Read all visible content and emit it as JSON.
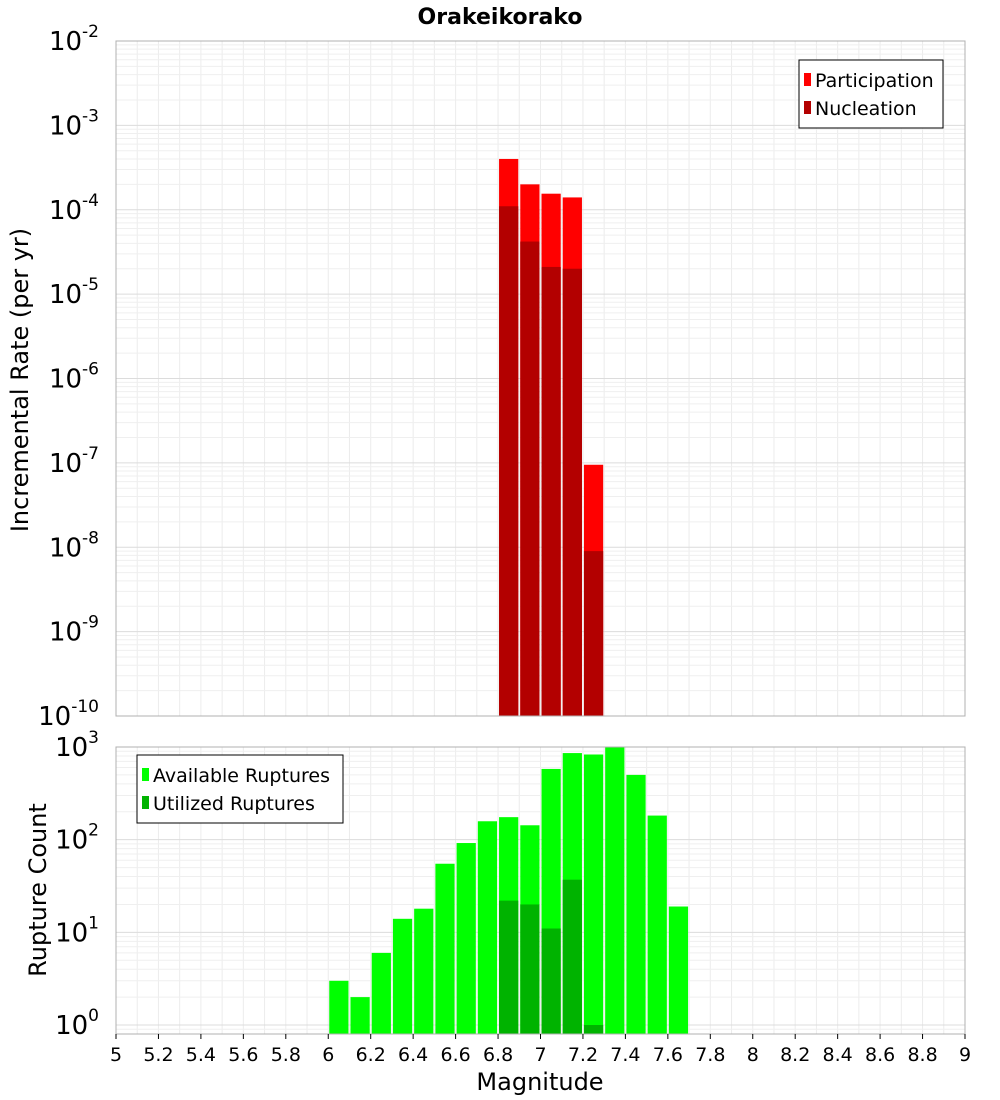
{
  "chart_data": [
    {
      "type": "bar",
      "title": "Orakeikorako",
      "xlabel": "",
      "ylabel": "Incremental Rate (per yr)",
      "yscale": "log",
      "xlim": [
        5,
        9
      ],
      "ylim": [
        1e-10,
        0.01
      ],
      "y_tick_exponents": [
        "-10",
        "-9",
        "-8",
        "-7",
        "-6",
        "-5",
        "-4",
        "-3",
        "-2"
      ],
      "grid": true,
      "legend_position": "top-right",
      "bar_width": 0.1,
      "x": [
        6.85,
        6.95,
        7.05,
        7.15,
        7.25
      ],
      "series": [
        {
          "name": "Participation",
          "color": "#ff0000",
          "values": [
            0.0004,
            0.0002,
            0.000155,
            0.00014,
            9.5e-08
          ]
        },
        {
          "name": "Nucleation",
          "color": "#b30000",
          "values": [
            0.00011,
            4.2e-05,
            2.1e-05,
            2e-05,
            9e-09
          ]
        }
      ]
    },
    {
      "type": "bar",
      "title": "",
      "xlabel": "Magnitude",
      "ylabel": "Rupture Count",
      "yscale": "log",
      "xlim": [
        5,
        9
      ],
      "ylim": [
        0.8,
        1000
      ],
      "y_tick_exponents": [
        "0",
        "1",
        "2",
        "3"
      ],
      "x_ticks": [
        "5",
        "5.2",
        "5.4",
        "5.6",
        "5.8",
        "6",
        "6.2",
        "6.4",
        "6.6",
        "6.8",
        "7",
        "7.2",
        "7.4",
        "7.6",
        "7.8",
        "8",
        "8.2",
        "8.4",
        "8.6",
        "8.8",
        "9"
      ],
      "grid": true,
      "legend_position": "top-left",
      "bar_width": 0.1,
      "x": [
        6.05,
        6.15,
        6.25,
        6.35,
        6.45,
        6.55,
        6.65,
        6.75,
        6.85,
        6.95,
        7.05,
        7.15,
        7.25,
        7.35,
        7.45,
        7.55,
        7.65
      ],
      "series": [
        {
          "name": "Available Ruptures",
          "color": "#00ff00",
          "values": [
            3,
            2,
            6,
            14,
            18,
            55,
            92,
            158,
            175,
            143,
            580,
            860,
            830,
            1000,
            500,
            182,
            19
          ]
        },
        {
          "name": "Utilized Ruptures",
          "color": "#00b300",
          "values": [
            0,
            0,
            0,
            0,
            0,
            0,
            0,
            0,
            22,
            20,
            11,
            37,
            1,
            0,
            0,
            0,
            0
          ]
        }
      ]
    }
  ]
}
